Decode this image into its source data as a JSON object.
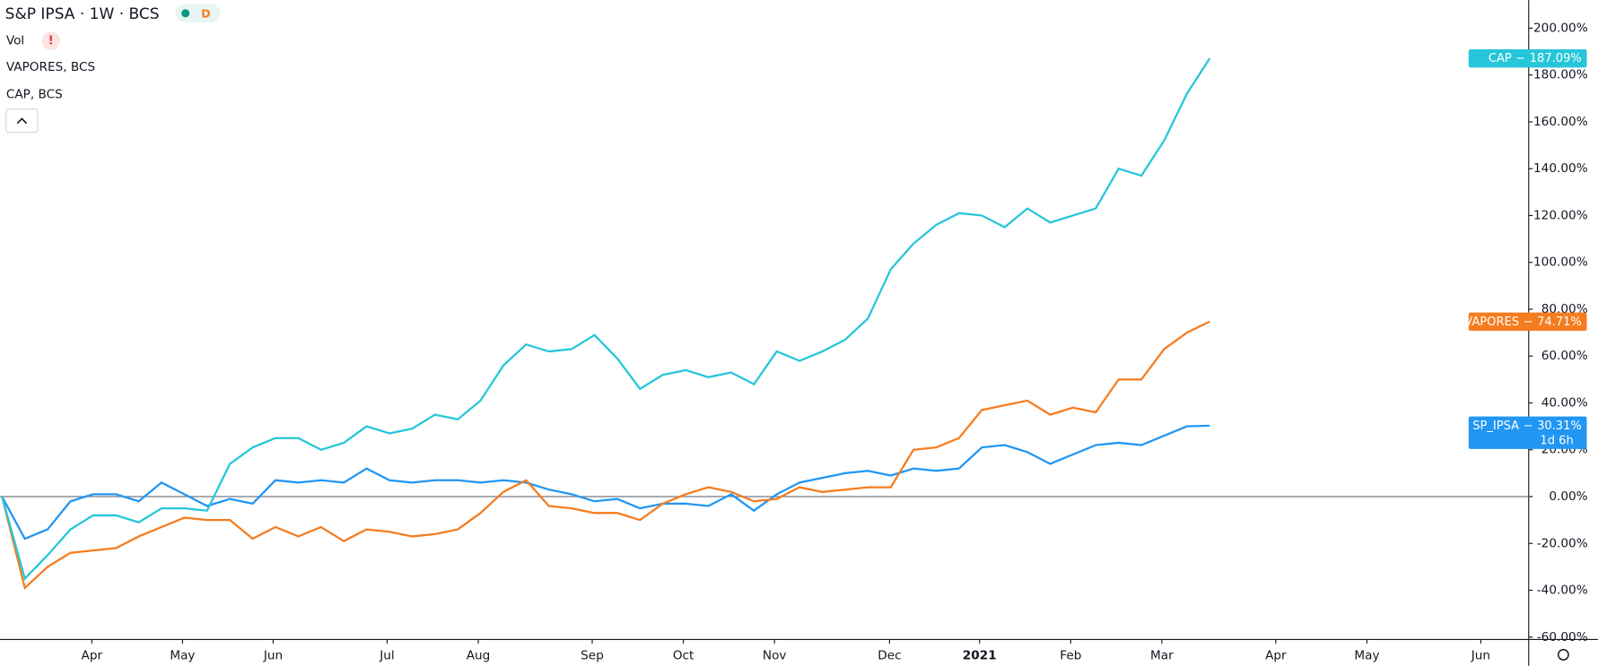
{
  "header": {
    "symbol": "S&P IPSA · 1W · BCS",
    "badge": "D",
    "studies": [
      "Vol",
      "VAPORES, BCS",
      "CAP, BCS"
    ],
    "warning": "!"
  },
  "chart_data": {
    "type": "line",
    "categories": [
      null,
      null,
      null,
      null,
      null,
      null,
      null,
      null,
      null,
      null,
      null,
      null,
      null,
      null,
      null,
      null,
      null,
      null,
      null,
      null,
      null,
      null,
      null,
      null,
      null,
      null,
      null,
      null,
      null,
      null,
      null,
      null,
      null,
      null,
      null,
      null,
      null,
      null,
      null,
      null,
      null,
      null,
      null,
      null,
      null,
      null,
      null,
      null,
      null,
      null,
      null,
      null,
      null,
      null
    ],
    "xlim": [
      0,
      67
    ],
    "xticks": [
      {
        "value": 3.94,
        "label": "Apr"
      },
      {
        "value": 7.92,
        "label": "May"
      },
      {
        "value": 11.9,
        "label": "Jun"
      },
      {
        "value": 16.9,
        "label": "Jul"
      },
      {
        "value": 20.9,
        "label": "Aug"
      },
      {
        "value": 25.9,
        "label": "Sep"
      },
      {
        "value": 29.9,
        "label": "Oct"
      },
      {
        "value": 33.9,
        "label": "Nov"
      },
      {
        "value": 38.95,
        "label": "Dec"
      },
      {
        "value": 42.9,
        "label": "2021"
      },
      {
        "value": 46.9,
        "label": "Feb"
      },
      {
        "value": 50.9,
        "label": "Mar"
      },
      {
        "value": 55.9,
        "label": "Apr"
      },
      {
        "value": 59.9,
        "label": "May"
      },
      {
        "value": 64.9,
        "label": "Jun"
      }
    ],
    "ylim": [
      -61,
      212
    ],
    "yticks": [
      {
        "value": -60,
        "label": "-60.00%"
      },
      {
        "value": -40,
        "label": "-40.00%"
      },
      {
        "value": -20,
        "label": "-20.00%"
      },
      {
        "value": 0,
        "label": "0.00%"
      },
      {
        "value": 20,
        "label": "20.00%"
      },
      {
        "value": 40,
        "label": "40.00%"
      },
      {
        "value": 60,
        "label": "60.00%"
      },
      {
        "value": 80,
        "label": "80.00%"
      },
      {
        "value": 100,
        "label": "100.00%"
      },
      {
        "value": 120,
        "label": "120.00%"
      },
      {
        "value": 140,
        "label": "140.00%"
      },
      {
        "value": 160,
        "label": "160.00%"
      },
      {
        "value": 180,
        "label": "180.00%"
      },
      {
        "value": 200,
        "label": "200.00%"
      }
    ],
    "countdown": "1d 6h",
    "series": [
      {
        "name": "SP_IPSA",
        "color": "#2196f3",
        "last_label": "30.31%",
        "values": [
          0,
          -18,
          -14,
          -2,
          1,
          1,
          -2,
          6,
          1,
          -4,
          -1,
          -3,
          7,
          6,
          7,
          6,
          12,
          7,
          6,
          7,
          7,
          6,
          7,
          6,
          3,
          1,
          -2,
          -1,
          -5,
          -3,
          -3,
          -4,
          1,
          -6,
          1,
          6,
          8,
          10,
          11,
          9,
          12,
          11,
          12,
          21,
          22,
          19,
          14,
          18,
          22,
          23,
          22,
          26,
          30,
          30.31
        ]
      },
      {
        "name": "VAPORES",
        "color": "#f57c1f",
        "last_label": "74.71%",
        "values": [
          0,
          -39,
          -30,
          -24,
          -23,
          -22,
          -17,
          -13,
          -9,
          -10,
          -10,
          -18,
          -13,
          -17,
          -13,
          -19,
          -14,
          -15,
          -17,
          -16,
          -14,
          -7,
          2,
          7,
          -4,
          -5,
          -7,
          -7,
          -10,
          -3,
          1,
          4,
          2,
          -2,
          -1,
          4,
          2,
          3,
          4,
          4,
          20,
          21,
          25,
          37,
          39,
          41,
          35,
          38,
          36,
          50,
          50,
          63,
          70,
          74.71
        ]
      },
      {
        "name": "CAP",
        "color": "#26c6da",
        "last_label": "187.09%",
        "values": [
          0,
          -35,
          -25,
          -14,
          -8,
          -8,
          -11,
          -5,
          -5,
          -6,
          14,
          21,
          25,
          25,
          20,
          23,
          30,
          27,
          29,
          35,
          33,
          41,
          56,
          65,
          62,
          63,
          69,
          59,
          46,
          52,
          54,
          51,
          53,
          48,
          62,
          58,
          62,
          67,
          76,
          97,
          108,
          116,
          121,
          120,
          115,
          123,
          117,
          120,
          123,
          140,
          137,
          152,
          172,
          187.09
        ]
      }
    ]
  }
}
